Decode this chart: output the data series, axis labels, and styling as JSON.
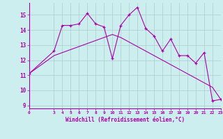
{
  "x": [
    0,
    3,
    4,
    5,
    6,
    7,
    8,
    9,
    10,
    11,
    12,
    13,
    14,
    15,
    16,
    17,
    18,
    19,
    20,
    21,
    22,
    23
  ],
  "y_main": [
    11.1,
    12.6,
    14.3,
    14.3,
    14.4,
    15.1,
    14.4,
    14.2,
    12.1,
    14.3,
    15.0,
    15.5,
    14.1,
    13.6,
    12.6,
    13.4,
    12.3,
    12.3,
    11.8,
    12.5,
    9.3,
    9.4
  ],
  "y_trend": [
    11.1,
    12.3,
    12.5,
    12.7,
    12.9,
    13.1,
    13.3,
    13.5,
    13.7,
    13.5,
    13.2,
    12.9,
    12.6,
    12.3,
    12.0,
    11.7,
    11.4,
    11.1,
    10.8,
    10.5,
    10.2,
    9.4
  ],
  "line_color": "#AA00AA",
  "bg_color": "#CCEEEE",
  "grid_color": "#AACCCC",
  "xlabel": "Windchill (Refroidissement éolien,°C)",
  "xlim": [
    0,
    23
  ],
  "ylim": [
    8.8,
    15.8
  ],
  "yticks": [
    9,
    10,
    11,
    12,
    13,
    14,
    15
  ],
  "xtick_positions": [
    0,
    3,
    4,
    5,
    6,
    7,
    8,
    9,
    10,
    11,
    12,
    13,
    14,
    15,
    16,
    17,
    18,
    19,
    20,
    21,
    22,
    23
  ],
  "xtick_labels": [
    "0",
    "3",
    "4",
    "5",
    "6",
    "7",
    "8",
    "9",
    "10",
    "11",
    "12",
    "13",
    "14",
    "15",
    "16",
    "17",
    "18",
    "19",
    "20",
    "21",
    "22",
    "23"
  ]
}
